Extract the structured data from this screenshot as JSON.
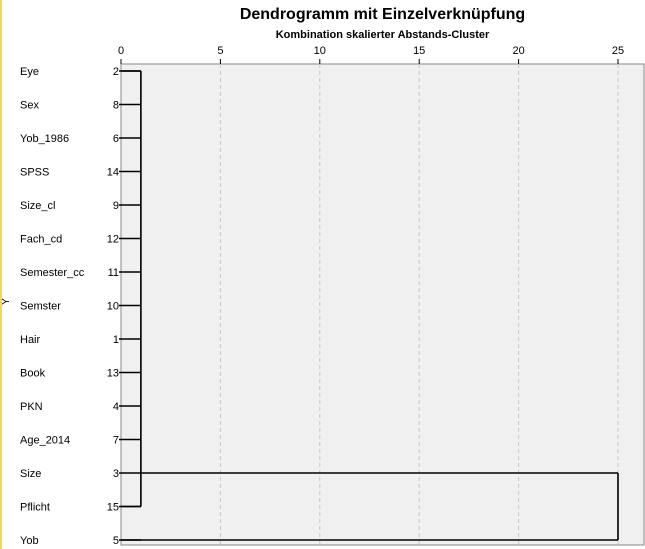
{
  "chart_data": {
    "type": "dendrogram",
    "title": "Dendrogramm mit Einzelverknüpfung",
    "xlabel": "Kombination skalierter Abstands-Cluster",
    "ylabel": "Y",
    "xlim": [
      0,
      25
    ],
    "xticks": [
      0,
      5,
      10,
      15,
      20,
      25
    ],
    "grid": true,
    "leaves": [
      {
        "label": "Eye",
        "id": "2"
      },
      {
        "label": "Sex",
        "id": "8"
      },
      {
        "label": "Yob_1986",
        "id": "6"
      },
      {
        "label": "SPSS",
        "id": "14"
      },
      {
        "label": "Size_cl",
        "id": "9"
      },
      {
        "label": "Fach_cd",
        "id": "12"
      },
      {
        "label": "Semester_cc",
        "id": "11"
      },
      {
        "label": "Semster",
        "id": "10"
      },
      {
        "label": "Hair",
        "id": "1"
      },
      {
        "label": "Book",
        "id": "13"
      },
      {
        "label": "PKN",
        "id": "4"
      },
      {
        "label": "Age_2014",
        "id": "7"
      },
      {
        "label": "Size",
        "id": "3"
      },
      {
        "label": "Pflicht",
        "id": "15"
      },
      {
        "label": "Yob",
        "id": "5"
      }
    ],
    "merges": [
      {
        "members": [
          "2",
          "8",
          "6",
          "14",
          "9",
          "12",
          "11",
          "10",
          "1",
          "13",
          "4",
          "7",
          "3",
          "15"
        ],
        "height": 1
      },
      {
        "members": [
          "2-15 cluster",
          "5"
        ],
        "height": 25
      }
    ],
    "colors": {
      "plot_bg": "#f0f0f0",
      "grid": "#c8c8c8",
      "line": "#000000"
    }
  }
}
